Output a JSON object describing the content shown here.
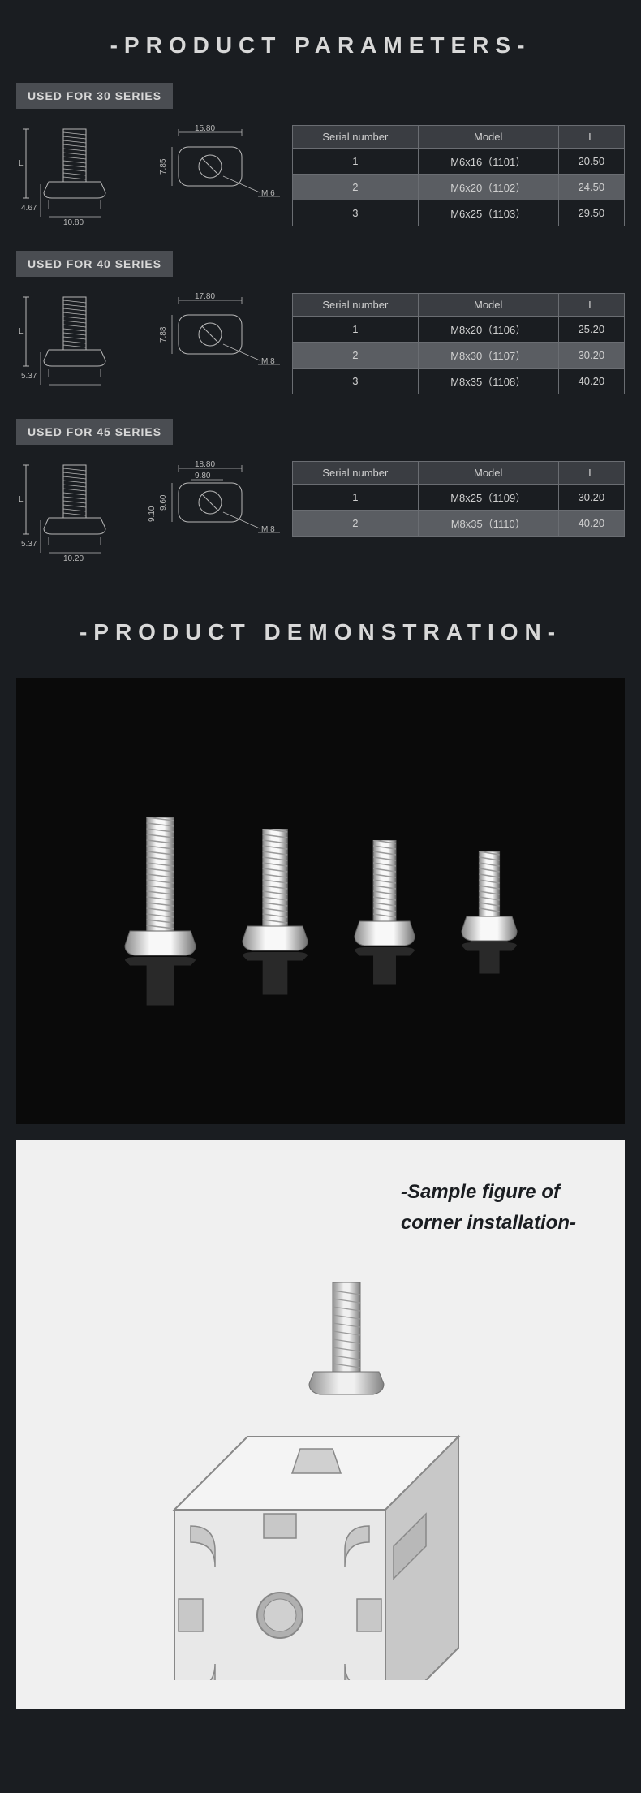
{
  "title1": "-PRODUCT PARAMETERS-",
  "title2": "-PRODUCT DEMONSTRATION-",
  "install_caption_line1": "-Sample figure of",
  "install_caption_line2": "corner installation-",
  "colors": {
    "bg": "#1a1d21",
    "panel_dark": "#0a0a0a",
    "panel_light": "#f0f0f0",
    "label_bg": "#4a4d52",
    "table_border": "#6a6d72",
    "header_bg": "#3a3d42",
    "highlight_bg": "#5a5d62",
    "text": "#d0d0d0",
    "diagram_stroke": "#b8b8b8",
    "metal_light": "#e8e8e8",
    "metal_mid": "#b0b0b0",
    "metal_dark": "#808080"
  },
  "series": [
    {
      "label": "USED FOR 30 SERIES",
      "diagram": {
        "side_w": "10.80",
        "side_h": "4.67",
        "top_w": "15.80",
        "top_h": "7.85",
        "thread": "M 6"
      },
      "headers": [
        "Serial number",
        "Model",
        "L"
      ],
      "rows": [
        {
          "hl": false,
          "cells": [
            "1",
            "M6x16（1101）",
            "20.50"
          ]
        },
        {
          "hl": true,
          "cells": [
            "2",
            "M6x20（1102）",
            "24.50"
          ]
        },
        {
          "hl": false,
          "cells": [
            "3",
            "M6x25（1103）",
            "29.50"
          ]
        }
      ]
    },
    {
      "label": "USED FOR 40 SERIES",
      "diagram": {
        "side_w": "",
        "side_h": "5.37",
        "top_w": "17.80",
        "top_h": "7.88",
        "thread": "M 8"
      },
      "headers": [
        "Serial number",
        "Model",
        "L"
      ],
      "rows": [
        {
          "hl": false,
          "cells": [
            "1",
            "M8x20（1106）",
            "25.20"
          ]
        },
        {
          "hl": true,
          "cells": [
            "2",
            "M8x30（1107）",
            "30.20"
          ]
        },
        {
          "hl": false,
          "cells": [
            "3",
            "M8x35（1108）",
            "40.20"
          ]
        }
      ]
    },
    {
      "label": "USED FOR 45 SERIES",
      "diagram": {
        "side_w": "10.20",
        "side_h": "5.37",
        "top_w": "18.80",
        "top_w2": "9.80",
        "top_h": "9.60",
        "top_h2": "9.10",
        "thread": "M 8"
      },
      "headers": [
        "Serial number",
        "Model",
        "L"
      ],
      "rows": [
        {
          "hl": false,
          "cells": [
            "1",
            "M8x25（1109）",
            "30.20"
          ]
        },
        {
          "hl": true,
          "cells": [
            "2",
            "M8x35（1110）",
            "40.20"
          ]
        }
      ]
    }
  ],
  "demo_bolts": [
    {
      "thread_h": 140,
      "head_w": 75
    },
    {
      "thread_h": 120,
      "head_w": 68
    },
    {
      "thread_h": 100,
      "head_w": 62
    },
    {
      "thread_h": 80,
      "head_w": 56
    }
  ]
}
